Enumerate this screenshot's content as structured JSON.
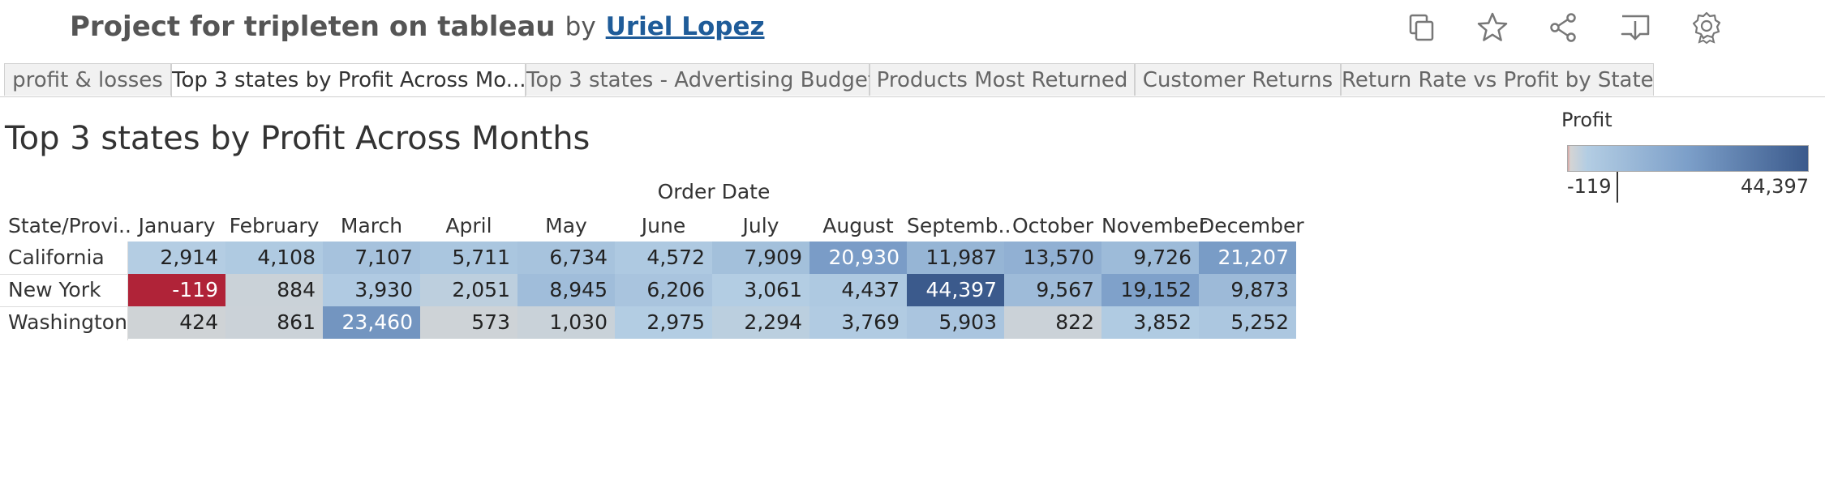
{
  "header": {
    "title": "Project for tripleten on tableau",
    "by": "by",
    "author": "Uriel Lopez",
    "icons": [
      "copy-icon",
      "star-icon",
      "share-icon",
      "download-icon",
      "badge-icon"
    ]
  },
  "tabs": [
    {
      "label": "profit & losses"
    },
    {
      "label": "Top 3 states by Profit Across Mo..."
    },
    {
      "label": "Top 3 states - Advertising Budget"
    },
    {
      "label": "Products Most Returned"
    },
    {
      "label": "Customer Returns"
    },
    {
      "label": "Return Rate vs Profit by State"
    }
  ],
  "active_tab_index": 1,
  "sheet": {
    "title": "Top 3 states by Profit Across Months",
    "column_group": "Order Date",
    "row_header": "State/Provi..",
    "months": [
      "January",
      "February",
      "March",
      "April",
      "May",
      "June",
      "July",
      "August",
      "Septemb..",
      "October",
      "November",
      "December"
    ],
    "rows": [
      {
        "state": "California",
        "cells": [
          "2,914",
          "4,108",
          "7,107",
          "5,711",
          "6,734",
          "4,572",
          "7,909",
          "20,930",
          "11,987",
          "13,570",
          "9,726",
          "21,207"
        ]
      },
      {
        "state": "New York",
        "cells": [
          "-119",
          "884",
          "3,930",
          "2,051",
          "8,945",
          "6,206",
          "3,061",
          "4,437",
          "44,397",
          "9,567",
          "19,152",
          "9,873"
        ]
      },
      {
        "state": "Washington",
        "cells": [
          "424",
          "861",
          "23,460",
          "573",
          "1,030",
          "2,975",
          "2,294",
          "3,769",
          "5,903",
          "822",
          "3,852",
          "5,252"
        ]
      }
    ]
  },
  "legend": {
    "title": "Profit",
    "min": "-119",
    "max": "44,397"
  },
  "colors": {
    "negative": "#b02338",
    "low": "#d4d4d4",
    "light_blue": "#b3cde3",
    "mid_blue": "#7c9fc9",
    "dark_blue": "#3b5a8c",
    "author_link": "#1f5c99"
  }
}
